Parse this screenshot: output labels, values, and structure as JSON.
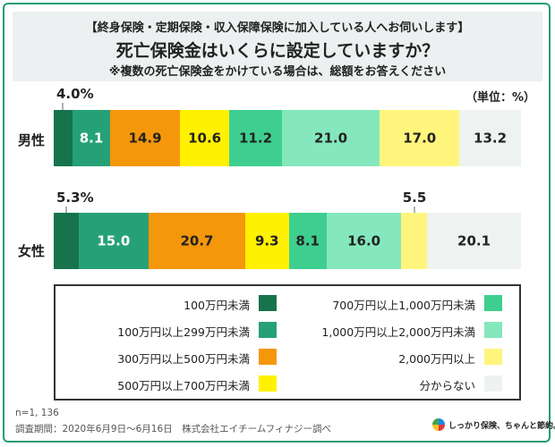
{
  "header": {
    "line1": "【終身保険・定期保険・収入保障保険に加入している人へお伺いします】",
    "line2": "死亡保険金はいくらに設定していますか？",
    "line3": "※複数の死亡保険金をかけている場合は、総額をお答えください"
  },
  "unit_label": "（単位：%）",
  "chart_data": {
    "type": "bar",
    "orientation": "horizontal",
    "stacked": true,
    "normalized_percent": true,
    "categories": [
      "男性",
      "女性"
    ],
    "series": [
      {
        "name": "100万円未満",
        "color": "#17734c",
        "values": [
          4.0,
          5.3
        ]
      },
      {
        "name": "100万円以上299万円未満",
        "color": "#26a177",
        "values": [
          8.1,
          15.0
        ]
      },
      {
        "name": "300万円以上500万円未満",
        "color": "#f5970a",
        "values": [
          14.9,
          20.7
        ]
      },
      {
        "name": "500万円以上700万円未満",
        "color": "#fff100",
        "values": [
          10.6,
          9.3
        ]
      },
      {
        "name": "700万円以上1,000万円未満",
        "color": "#3ecf90",
        "values": [
          11.2,
          8.1
        ]
      },
      {
        "name": "1,000万円以上2,000万円未満",
        "color": "#84e8bc",
        "values": [
          21.0,
          16.0
        ]
      },
      {
        "name": "2,000万円以上",
        "color": "#fff57c",
        "values": [
          17.0,
          5.5
        ]
      },
      {
        "name": "分からない",
        "color": "#eef3f2",
        "values": [
          13.2,
          20.1
        ]
      }
    ],
    "value_labels": [
      [
        "4.0%",
        "8.1",
        "14.9",
        "10.6",
        "11.2",
        "21.0",
        "17.0",
        "13.2"
      ],
      [
        "5.3%",
        "15.0",
        "20.7",
        "9.3",
        "8.1",
        "16.0",
        "5.5",
        "20.1"
      ]
    ],
    "callouts": [
      {
        "row": 0,
        "series": 0
      },
      {
        "row": 1,
        "series": 0
      },
      {
        "row": 1,
        "series": 6
      }
    ]
  },
  "legend": {
    "left": [
      {
        "label": "100万円未満",
        "series": 0
      },
      {
        "label": "100万円以上299万円未満",
        "series": 1
      },
      {
        "label": "300万円以上500万円未満",
        "series": 2
      },
      {
        "label": "500万円以上700万円未満",
        "series": 3
      }
    ],
    "right": [
      {
        "label": "700万円以上1,000万円未満",
        "series": 4
      },
      {
        "label": "1,000万円以上2,000万円未満",
        "series": 5
      },
      {
        "label": "2,000万円以上",
        "series": 6
      },
      {
        "label": "分からない",
        "series": 7
      }
    ]
  },
  "footer": {
    "sample": "n=1, 136",
    "survey": "調査期間：2020年6月9日〜6月16日　株式会社エイチームフィナジー調べ",
    "brand": "しっかり保険、ちゃんと節約。"
  }
}
